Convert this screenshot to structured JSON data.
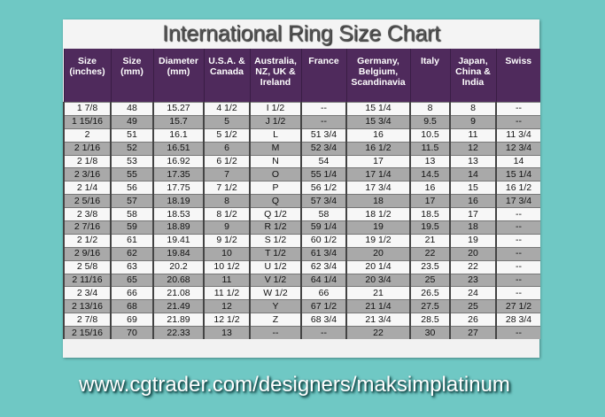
{
  "title": "International Ring Size Chart",
  "colors": {
    "background": "#6fc8c4",
    "header": "#4f2a5c",
    "alt_row": "#a9a9a9"
  },
  "columns": [
    "Size (inches)",
    "Size (mm)",
    "Diameter (mm)",
    "U.S.A. & Canada",
    "Australia, NZ, UK & Ireland",
    "France",
    "Germany, Belgium, Scandinavia",
    "Italy",
    "Japan, China & India",
    "Swiss"
  ],
  "rows": [
    [
      "1  7/8",
      "48",
      "15.27",
      "4 1/2",
      "I 1/2",
      "--",
      "15 1/4",
      "8",
      "8",
      "--"
    ],
    [
      "1 15/16",
      "49",
      "15.7",
      "5",
      "J 1/2",
      "--",
      "15 3/4",
      "9.5",
      "9",
      "--"
    ],
    [
      "2",
      "51",
      "16.1",
      "5 1/2",
      "L",
      "51 3/4",
      "16",
      "10.5",
      "11",
      "11 3/4"
    ],
    [
      "2  1/16",
      "52",
      "16.51",
      "6",
      "M",
      "52 3/4",
      "16 1/2",
      "11.5",
      "12",
      "12 3/4"
    ],
    [
      "2  1/8",
      "53",
      "16.92",
      "6 1/2",
      "N",
      "54",
      "17",
      "13",
      "13",
      "14"
    ],
    [
      "2  3/16",
      "55",
      "17.35",
      "7",
      "O",
      "55 1/4",
      "17 1/4",
      "14.5",
      "14",
      "15 1/4"
    ],
    [
      "2  1/4",
      "56",
      "17.75",
      "7 1/2",
      "P",
      "56 1/2",
      "17 3/4",
      "16",
      "15",
      "16 1/2"
    ],
    [
      "2  5/16",
      "57",
      "18.19",
      "8",
      "Q",
      "57 3/4",
      "18",
      "17",
      "16",
      "17 3/4"
    ],
    [
      "2  3/8",
      "58",
      "18.53",
      "8 1/2",
      "Q 1/2",
      "58",
      "18 1/2",
      "18.5",
      "17",
      "--"
    ],
    [
      "2  7/16",
      "59",
      "18.89",
      "9",
      "R 1/2",
      "59 1/4",
      "19",
      "19.5",
      "18",
      "--"
    ],
    [
      "2  1/2",
      "61",
      "19.41",
      "9 1/2",
      "S 1/2",
      "60 1/2",
      "19 1/2",
      "21",
      "19",
      "--"
    ],
    [
      "2  9/16",
      "62",
      "19.84",
      "10",
      "T 1/2",
      "61 3/4",
      "20",
      "22",
      "20",
      "--"
    ],
    [
      "2  5/8",
      "63",
      "20.2",
      "10 1/2",
      "U 1/2",
      "62 3/4",
      "20 1/4",
      "23.5",
      "22",
      "--"
    ],
    [
      "2 11/16",
      "65",
      "20.68",
      "11",
      "V 1/2",
      "64 1/4",
      "20 3/4",
      "25",
      "23",
      "--"
    ],
    [
      "2  3/4",
      "66",
      "21.08",
      "11 1/2",
      "W 1/2",
      "66",
      "21",
      "26.5",
      "24",
      "--"
    ],
    [
      "2 13/16",
      "68",
      "21.49",
      "12",
      "Y",
      "67 1/2",
      "21 1/4",
      "27.5",
      "25",
      "27 1/2"
    ],
    [
      "2  7/8",
      "69",
      "21.89",
      "12 1/2",
      "Z",
      "68 3/4",
      "21 3/4",
      "28.5",
      "26",
      "28 3/4"
    ],
    [
      "2 15/16",
      "70",
      "22.33",
      "13",
      "--",
      "--",
      "22",
      "30",
      "27",
      "--"
    ]
  ],
  "footer_url": "www.cgtrader.com/designers/maksimplatinum"
}
